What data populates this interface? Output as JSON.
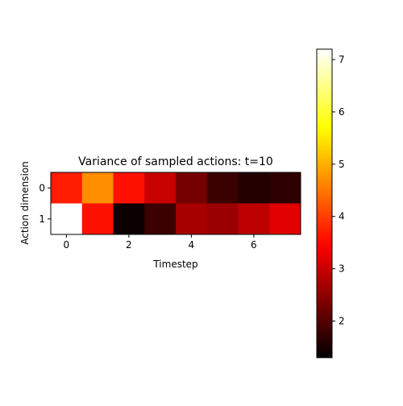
{
  "chart_data": {
    "type": "heatmap",
    "title": "Variance of sampled actions: t=10",
    "xlabel": "Timestep",
    "ylabel": "Action dimension",
    "x_ticks": [
      0,
      2,
      4,
      6
    ],
    "y_ticks": [
      0,
      1
    ],
    "colormap": "hot",
    "vmin": 1.3,
    "vmax": 7.2,
    "colorbar_ticks": [
      2,
      3,
      4,
      5,
      6,
      7
    ],
    "rows": [
      "0",
      "1"
    ],
    "columns": [
      0,
      1,
      2,
      3,
      4,
      5,
      6,
      7
    ],
    "values": [
      [
        3.7,
        4.7,
        3.6,
        3.0,
        2.3,
        1.8,
        1.6,
        1.7
      ],
      [
        7.2,
        3.6,
        1.4,
        1.8,
        2.7,
        2.6,
        2.9,
        3.2
      ]
    ]
  }
}
